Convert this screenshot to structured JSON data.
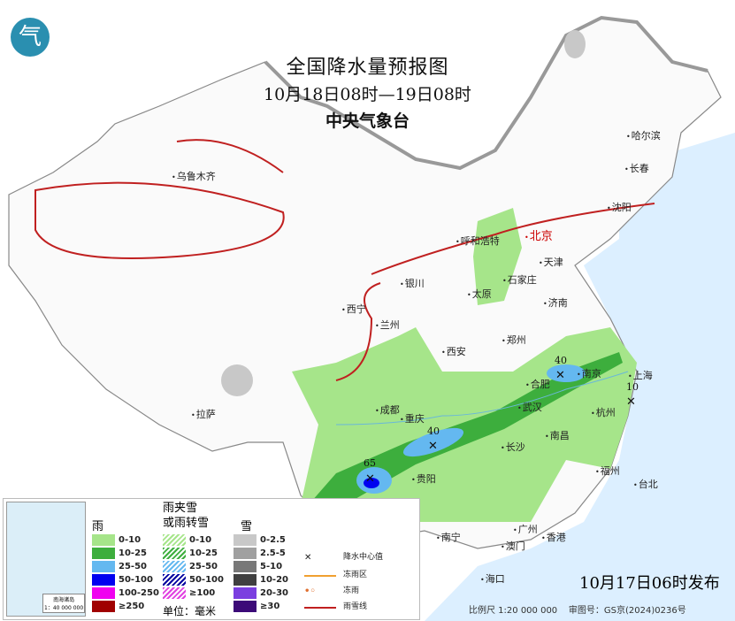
{
  "header": {
    "title": "全国降水量预报图",
    "period": "10月18日08时—19日08时",
    "agency": "中央气象台"
  },
  "logo": {
    "icon": "cma-logo",
    "glyph": "气"
  },
  "cities": [
    "乌鲁木齐",
    "哈尔滨",
    "长春",
    "沈阳",
    "呼和浩特",
    "北京",
    "天津",
    "石家庄",
    "太原",
    "银川",
    "济南",
    "西宁",
    "兰州",
    "郑州",
    "西安",
    "合肥",
    "南京",
    "上海",
    "成都",
    "武汉",
    "杭州",
    "重庆",
    "拉萨",
    "长沙",
    "南昌",
    "贵阳",
    "昆明",
    "福州",
    "台北",
    "南宁",
    "广州",
    "澳门",
    "香港",
    "海口"
  ],
  "precip_centers": [
    {
      "near": "昆明",
      "value": "65"
    },
    {
      "near": "重庆",
      "value": "40"
    },
    {
      "near": "合肥",
      "value": "40"
    },
    {
      "near": "上海",
      "value": "10"
    }
  ],
  "legend": {
    "rain_title": "雨",
    "mixed_title": "雨夹雪\n或雨转雪",
    "snow_title": "雪",
    "rain": [
      {
        "label": "0-10",
        "color": "#a6e58a"
      },
      {
        "label": "10-25",
        "color": "#3dae3d"
      },
      {
        "label": "25-50",
        "color": "#64b8f0"
      },
      {
        "label": "50-100",
        "color": "#0000f0"
      },
      {
        "label": "100-250",
        "color": "#f000f0"
      },
      {
        "label": "≥250",
        "color": "#a00000"
      }
    ],
    "mixed": [
      {
        "label": "0-10",
        "color": "#a6e58a"
      },
      {
        "label": "10-25",
        "color": "#3dae3d"
      },
      {
        "label": "25-50",
        "color": "#64b8f0"
      },
      {
        "label": "50-100",
        "color": "#0000a0"
      },
      {
        "label": "≥100",
        "color": "#e040e0"
      }
    ],
    "snow": [
      {
        "label": "0-2.5",
        "color": "#c8c8c8"
      },
      {
        "label": "2.5-5",
        "color": "#a0a0a0"
      },
      {
        "label": "5-10",
        "color": "#787878"
      },
      {
        "label": "10-20",
        "color": "#404040"
      },
      {
        "label": "20-30",
        "color": "#7b3fe0"
      },
      {
        "label": "≥30",
        "color": "#3c0a78"
      }
    ],
    "unit": "单位：毫米",
    "freezing_zone": "冻雨区",
    "freezing_rain": "冻雨",
    "snow_line": "雨雪线",
    "center_value": "降水中心值",
    "inset_title": "南海诸岛",
    "inset_scale": "1：40 000 000"
  },
  "footer": {
    "issued": "10月17日06时发布",
    "scale": "比例尺 1:20 000 000",
    "map_no": "审图号：GS京(2024)0236号"
  }
}
